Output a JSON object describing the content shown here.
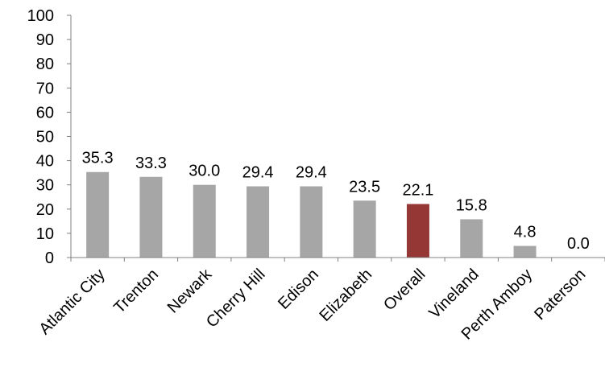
{
  "chart_data": {
    "type": "bar",
    "categories": [
      "Atlantic City",
      "Trenton",
      "Newark",
      "Cherry Hill",
      "Edison",
      "Elizabeth",
      "Overall",
      "Vineland",
      "Perth Amboy",
      "Paterson"
    ],
    "values": [
      35.3,
      33.3,
      30.0,
      29.4,
      29.4,
      23.5,
      22.1,
      15.8,
      4.8,
      0.0
    ],
    "value_labels": [
      "35.3",
      "33.3",
      "30.0",
      "29.4",
      "29.4",
      "23.5",
      "22.1",
      "15.8",
      "4.8",
      "0.0"
    ],
    "title": "",
    "xlabel": "",
    "ylabel": "",
    "ylim": [
      0,
      100
    ],
    "yticks": [
      "0",
      "10",
      "20",
      "30",
      "40",
      "50",
      "60",
      "70",
      "80",
      "90",
      "100"
    ],
    "grid": false,
    "legend": "none",
    "colors": {
      "default_bar": "#a6a6a6",
      "highlight_bar": "#953735",
      "highlight_category": "Overall",
      "axis": "#808080",
      "text": "#000000"
    }
  }
}
